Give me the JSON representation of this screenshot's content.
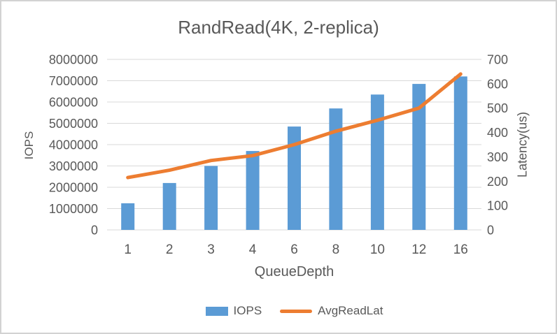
{
  "frame": {
    "background": "#ffffff",
    "border_color": "#d2d2d2"
  },
  "chart_data": {
    "type": "combo",
    "title": "RandRead(4K, 2-replica)",
    "xlabel": "QueueDepth",
    "categories": [
      "1",
      "2",
      "3",
      "4",
      "6",
      "8",
      "10",
      "12",
      "16"
    ],
    "series": [
      {
        "name": "IOPS",
        "type": "bar",
        "axis": "left",
        "color": "#5B9BD5",
        "values": [
          1250000,
          2200000,
          3000000,
          3700000,
          4850000,
          5700000,
          6350000,
          6850000,
          7200000
        ]
      },
      {
        "name": "AvgReadLat",
        "type": "line",
        "axis": "right",
        "color": "#ED7D31",
        "values": [
          215,
          245,
          285,
          305,
          350,
          405,
          450,
          500,
          640
        ]
      }
    ],
    "left_axis": {
      "label": "IOPS",
      "min": 0,
      "max": 8000000,
      "step": 1000000
    },
    "right_axis": {
      "label": "Latency(us)",
      "min": 0,
      "max": 700,
      "step": 100
    },
    "grid": true,
    "legend_position": "bottom",
    "colors": {
      "text": "#595959",
      "grid": "#D9D9D9"
    }
  }
}
